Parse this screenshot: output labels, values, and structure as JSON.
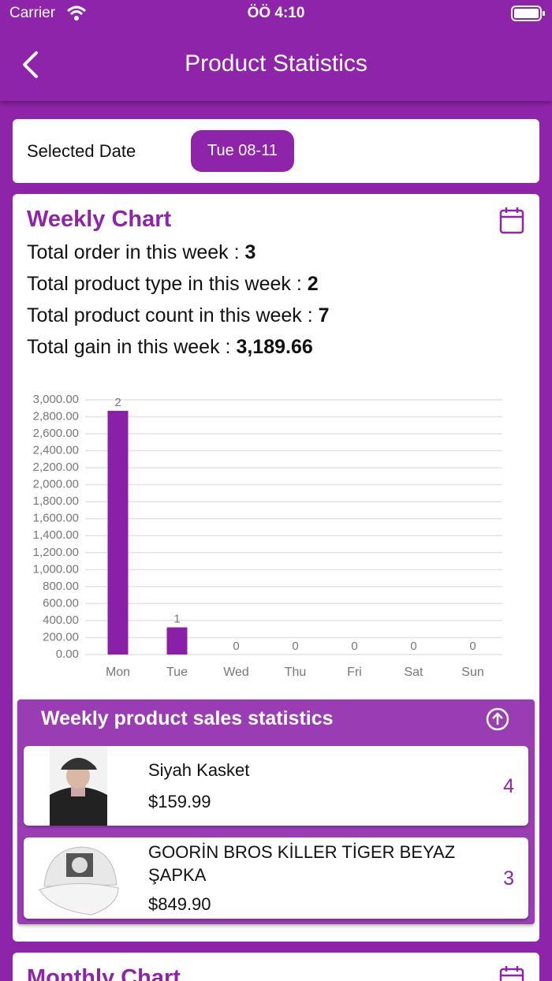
{
  "status_bar": {
    "carrier": "Carrier",
    "time": "ÖÖ 4:10"
  },
  "header": {
    "title": "Product Statistics"
  },
  "date_card": {
    "label": "Selected Date",
    "date": "Tue 08-11"
  },
  "weekly": {
    "title": "Weekly Chart",
    "stats": [
      {
        "label": "Total order in this week :",
        "value": "3"
      },
      {
        "label": "Total product type in this week :",
        "value": "2"
      },
      {
        "label": "Total product count in this week :",
        "value": "7"
      },
      {
        "label": "Total gain in this week :",
        "value": "3,189.66"
      }
    ]
  },
  "chart_data": {
    "type": "bar",
    "categories": [
      "Mon",
      "Tue",
      "Wed",
      "Thu",
      "Fri",
      "Sat",
      "Sun"
    ],
    "values": [
      2870,
      320,
      0,
      0,
      0,
      0,
      0
    ],
    "order_counts": [
      2,
      1,
      0,
      0,
      0,
      0,
      0
    ],
    "color": "#8a1fa8",
    "ylim": [
      0,
      3000
    ],
    "yticks": [
      {
        "value": 0,
        "label": "0.00"
      },
      {
        "value": 200,
        "label": "200.00"
      },
      {
        "value": 400,
        "label": "400.00"
      },
      {
        "value": 600,
        "label": "600.00"
      },
      {
        "value": 800,
        "label": "800.00"
      },
      {
        "value": 1000,
        "label": "1,000.00"
      },
      {
        "value": 1200,
        "label": "1,200.00"
      },
      {
        "value": 1400,
        "label": "1,400.00"
      },
      {
        "value": 1600,
        "label": "1,600.00"
      },
      {
        "value": 1800,
        "label": "1,800.00"
      },
      {
        "value": 2000,
        "label": "2,000.00"
      },
      {
        "value": 2200,
        "label": "2,200.00"
      },
      {
        "value": 2400,
        "label": "2,400.00"
      },
      {
        "value": 2600,
        "label": "2,600.00"
      },
      {
        "value": 2800,
        "label": "2,800.00"
      },
      {
        "value": 3000,
        "label": "3,000.00"
      }
    ],
    "grid": true
  },
  "sales": {
    "title": "Weekly product sales statistics",
    "products": [
      {
        "name": "Siyah Kasket",
        "price": "$159.99",
        "count": 4
      },
      {
        "name": "GOORİN BROS KİLLER TİGER BEYAZ ŞAPKA",
        "price": "$849.90",
        "count": 3
      }
    ]
  },
  "monthly": {
    "title": "Monthly Chart"
  }
}
